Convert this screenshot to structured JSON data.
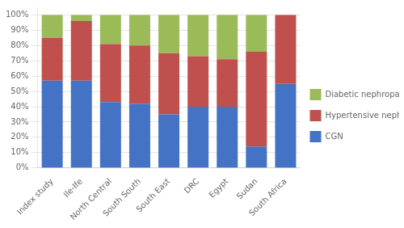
{
  "chart_data": {
    "type": "bar",
    "stacked": true,
    "categories": [
      "Index study",
      "Ile-Ife",
      "North Central",
      "South South",
      "South East",
      "DRC",
      "Egypt",
      "Sudan",
      "South Africa"
    ],
    "series": [
      {
        "name": "CGN",
        "color": "#4472C4",
        "values": [
          57,
          57,
          43,
          42,
          35,
          40,
          40,
          14,
          55
        ]
      },
      {
        "name": "Hypertensive nephropathy",
        "color": "#C0504D",
        "values": [
          28,
          39,
          38,
          38,
          40,
          33,
          31,
          62,
          45
        ]
      },
      {
        "name": "Diabetic nephropathy",
        "color": "#9BBB59",
        "values": [
          15,
          4,
          19,
          20,
          25,
          27,
          29,
          24,
          0
        ]
      }
    ],
    "ylim": [
      0,
      105
    ],
    "yticks": [
      {
        "value": 0,
        "label": "0%"
      },
      {
        "value": 10,
        "label": "10%"
      },
      {
        "value": 20,
        "label": "20%"
      },
      {
        "value": 30,
        "label": "30%"
      },
      {
        "value": 40,
        "label": "40%"
      },
      {
        "value": 50,
        "label": "50%"
      },
      {
        "value": 60,
        "label": "60%"
      },
      {
        "value": 70,
        "label": "70%"
      },
      {
        "value": 80,
        "label": "80%"
      },
      {
        "value": 90,
        "label": "90%"
      },
      {
        "value": 100,
        "label": "100%"
      }
    ],
    "grid": true,
    "legend": "right"
  }
}
